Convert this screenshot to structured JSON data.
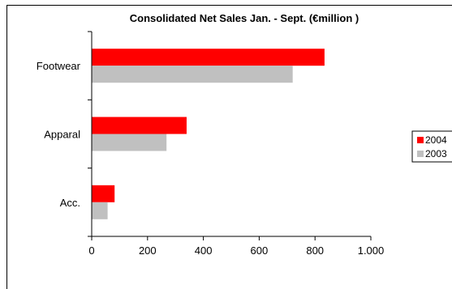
{
  "chart_data": {
    "type": "bar",
    "orientation": "horizontal",
    "title": "Consolidated Net Sales Jan. - Sept.   (€million )",
    "categories": [
      "Footwear",
      "Apparal",
      "Acc."
    ],
    "series": [
      {
        "name": "2004",
        "color": "#ff0000",
        "values": [
          834,
          340,
          82
        ]
      },
      {
        "name": "2003",
        "color": "#c0c0c0",
        "values": [
          720,
          268,
          57
        ]
      }
    ],
    "xlim": [
      0,
      1000
    ],
    "xticks": [
      0,
      200,
      400,
      600,
      800,
      1000
    ],
    "xtick_labels": [
      "0",
      "200",
      "400",
      "600",
      "800",
      "1.000"
    ],
    "grid": false,
    "legend_position": "right"
  }
}
